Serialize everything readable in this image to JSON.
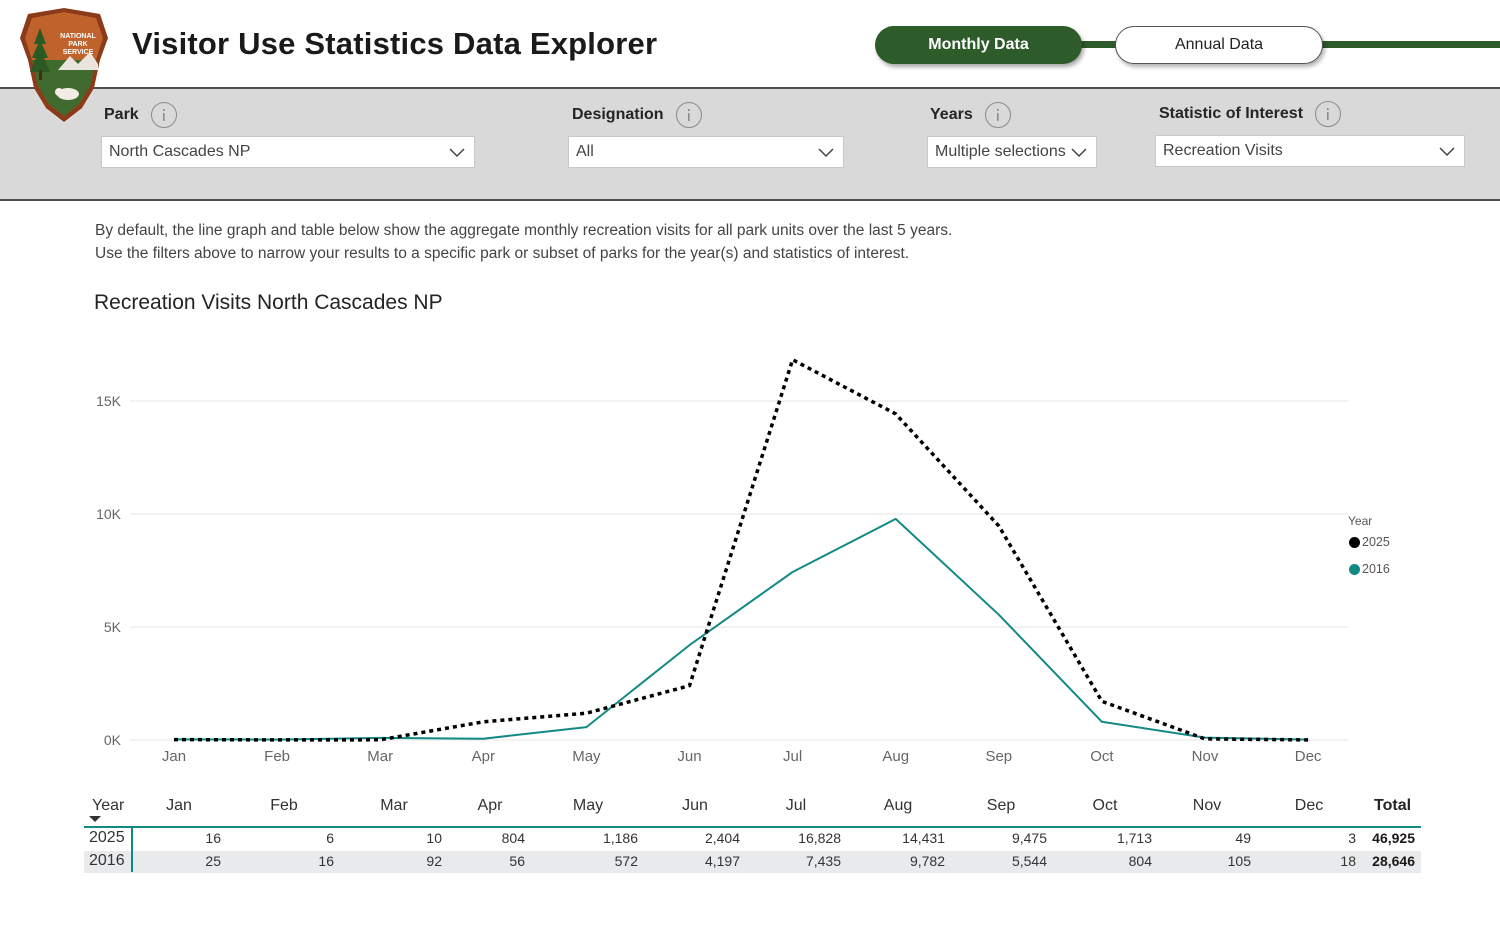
{
  "header": {
    "title": "Visitor Use Statistics Data Explorer",
    "logo_text": [
      "NATIONAL",
      "PARK",
      "SERVICE"
    ],
    "tabs": [
      {
        "label": "Monthly Data",
        "active": true
      },
      {
        "label": "Annual Data",
        "active": false
      }
    ],
    "brand_color": "#2e5b2a"
  },
  "filters": [
    {
      "label": "Park",
      "value": "North Cascades NP"
    },
    {
      "label": "Designation",
      "value": "All"
    },
    {
      "label": "Years",
      "value": "Multiple selections"
    },
    {
      "label": "Statistic of Interest",
      "value": "Recreation Visits"
    }
  ],
  "description": [
    "By default, the line graph and table below show the aggregate monthly recreation visits for all park units over the last 5 years.",
    "Use the filters above to narrow your results to a specific park or subset of parks for the year(s) and statistics of interest."
  ],
  "chart_data": {
    "type": "line",
    "title": "Recreation Visits North Cascades NP",
    "categories": [
      "Jan",
      "Feb",
      "Mar",
      "Apr",
      "May",
      "Jun",
      "Jul",
      "Aug",
      "Sep",
      "Oct",
      "Nov",
      "Dec"
    ],
    "series": [
      {
        "name": "2025",
        "color": "#000000",
        "style": "dotted",
        "values": [
          16,
          6,
          10,
          804,
          1186,
          2404,
          16828,
          14431,
          9475,
          1713,
          49,
          3
        ]
      },
      {
        "name": "2016",
        "color": "#128a84",
        "style": "solid",
        "values": [
          25,
          16,
          92,
          56,
          572,
          4197,
          7435,
          9782,
          5544,
          804,
          105,
          18
        ]
      }
    ],
    "yticks": [
      0,
      5000,
      10000,
      15000
    ],
    "ytick_labels": [
      "0K",
      "5K",
      "10K",
      "15K"
    ],
    "ylim": [
      0,
      17000
    ],
    "legend_title": "Year",
    "legend_position": "right",
    "grid": true
  },
  "table": {
    "year_header": "Year",
    "month_headers": [
      "Jan",
      "Feb",
      "Mar",
      "Apr",
      "May",
      "Jun",
      "Jul",
      "Aug",
      "Sep",
      "Oct",
      "Nov",
      "Dec"
    ],
    "total_header": "Total",
    "rows": [
      {
        "year": "2025",
        "values": [
          "16",
          "6",
          "10",
          "804",
          "1,186",
          "2,404",
          "16,828",
          "14,431",
          "9,475",
          "1,713",
          "49",
          "3"
        ],
        "total": "46,925"
      },
      {
        "year": "2016",
        "values": [
          "25",
          "16",
          "92",
          "56",
          "572",
          "4,197",
          "7,435",
          "9,782",
          "5,544",
          "804",
          "105",
          "18"
        ],
        "total": "28,646"
      }
    ]
  }
}
